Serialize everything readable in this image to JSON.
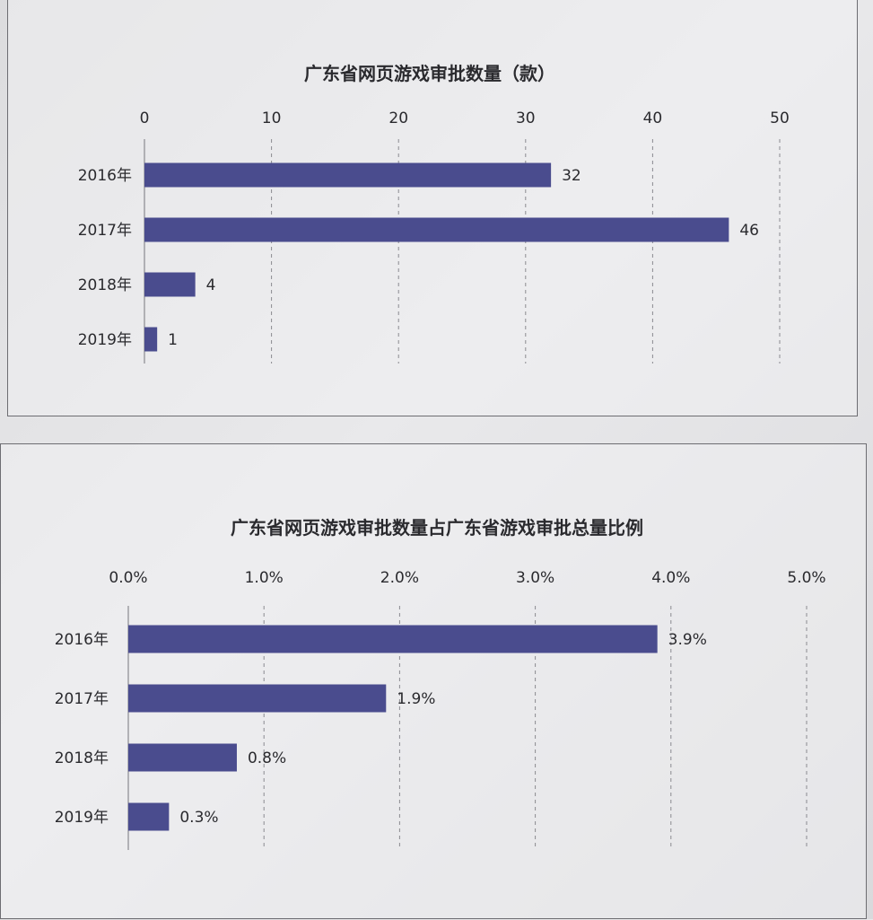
{
  "chart_data": [
    {
      "type": "bar",
      "orientation": "horizontal",
      "title": "广东省网页游戏审批数量（款）",
      "categories": [
        "2016年",
        "2017年",
        "2018年",
        "2019年"
      ],
      "values": [
        32,
        46,
        4,
        1
      ],
      "data_labels": [
        "32",
        "46",
        "4",
        "1"
      ],
      "xlim": [
        0,
        50
      ],
      "ticks": [
        0,
        10,
        20,
        30,
        40,
        50
      ],
      "tick_labels": [
        "0",
        "10",
        "20",
        "30",
        "40",
        "50"
      ],
      "axis_position": "top",
      "grid": true,
      "bar_color": "#4a4c8e"
    },
    {
      "type": "bar",
      "orientation": "horizontal",
      "title": "广东省网页游戏审批数量占广东省游戏审批总量比例",
      "categories": [
        "2016年",
        "2017年",
        "2018年",
        "2019年"
      ],
      "values": [
        3.9,
        1.9,
        0.8,
        0.3
      ],
      "data_labels": [
        "3.9%",
        "1.9%",
        "0.8%",
        "0.3%"
      ],
      "xlim": [
        0,
        5
      ],
      "ticks": [
        0,
        1,
        2,
        3,
        4,
        5
      ],
      "tick_labels": [
        "0.0%",
        "1.0%",
        "2.0%",
        "3.0%",
        "4.0%",
        "5.0%"
      ],
      "axis_position": "top",
      "grid": true,
      "bar_color": "#4a4c8e"
    }
  ]
}
